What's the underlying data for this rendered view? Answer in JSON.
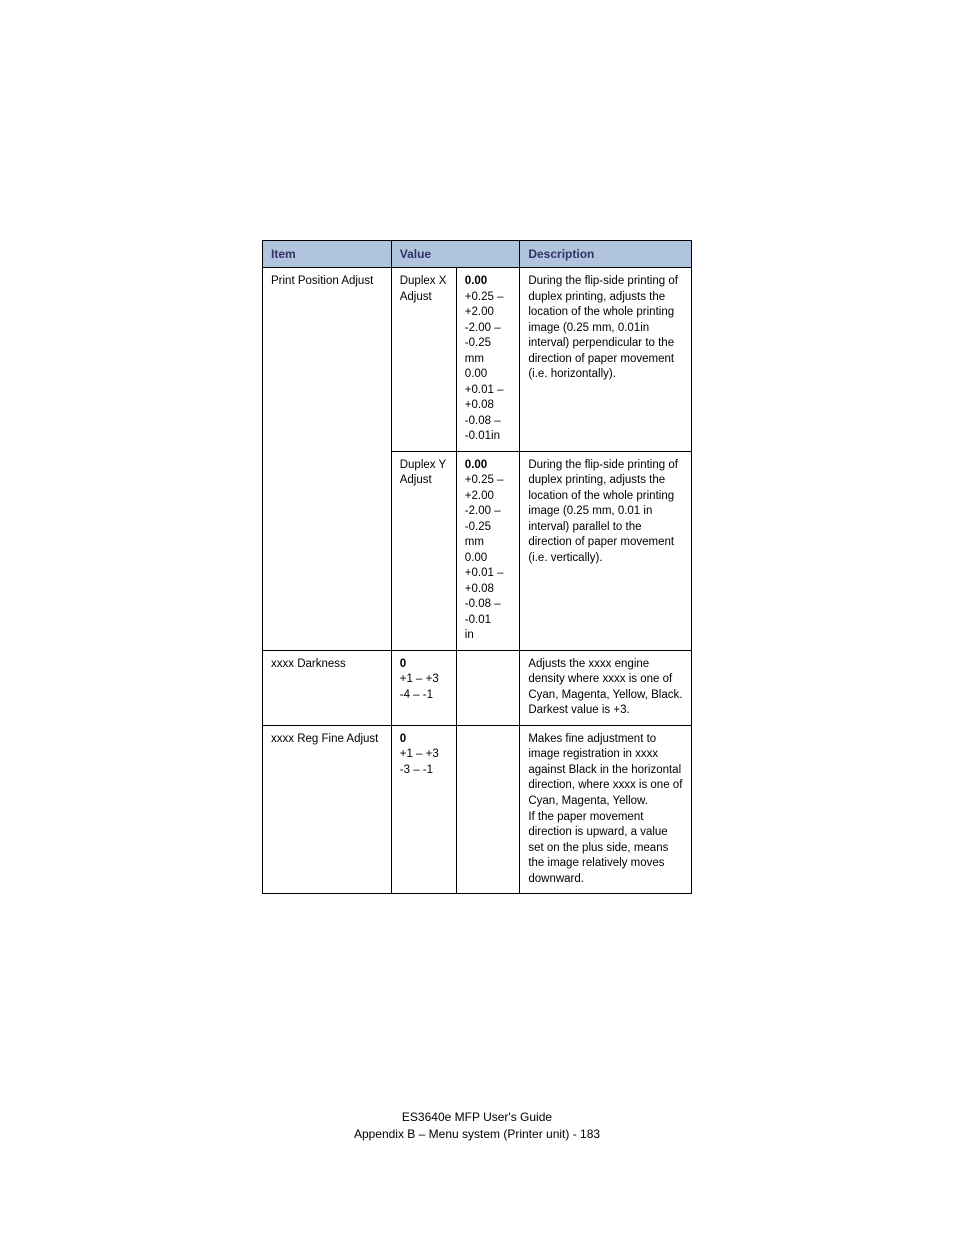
{
  "header_bg": "#b0c4de",
  "header_fg": "#333366",
  "headers": {
    "item": "Item",
    "value": "Value",
    "description": "Description"
  },
  "rows": {
    "r1": {
      "item": "Print Position Adjust",
      "sub1": {
        "label": "Duplex X Adjust",
        "val_bold": "0.00",
        "val_rest": "+0.25 – +2.00\n-2.00 – -0.25\nmm\n0.00\n+0.01 – +0.08\n-0.08 – -0.01in",
        "desc": "During the flip-side printing of duplex printing, adjusts the location of the whole printing image (0.25 mm, 0.01in interval) perpendicular to the direction of paper movement (i.e. horizontally)."
      },
      "sub2": {
        "label": "Duplex Y Adjust",
        "val_bold": "0.00",
        "val_rest": "+0.25 – +2.00\n-2.00 – -0.25\nmm\n0.00\n+0.01 – +0.08\n-0.08 – -0.01\nin",
        "desc": "During the flip-side printing of duplex printing, adjusts the location of the whole printing image (0.25 mm, 0.01 in interval) parallel to the direction of paper movement (i.e. vertically)."
      }
    },
    "r2": {
      "item": "xxxx Darkness",
      "val_bold": "0",
      "val_rest": "+1 – +3\n-4 – -1",
      "desc": "Adjusts the xxxx engine density where xxxx is one of Cyan, Magenta, Yellow, Black. Darkest value is +3."
    },
    "r3": {
      "item": "xxxx Reg Fine Adjust",
      "val_bold": "0",
      "val_rest": "+1 – +3\n-3 – -1",
      "desc": "Makes fine adjustment to image registration in xxxx against Black in the horizontal direction, where xxxx is one of Cyan, Magenta, Yellow.\nIf the paper movement direction is upward, a value set on the plus side, means the image relatively moves downward."
    }
  },
  "footer": {
    "line1": "ES3640e MFP User's Guide",
    "line2": "Appendix B – Menu system (Printer unit) - 183"
  }
}
